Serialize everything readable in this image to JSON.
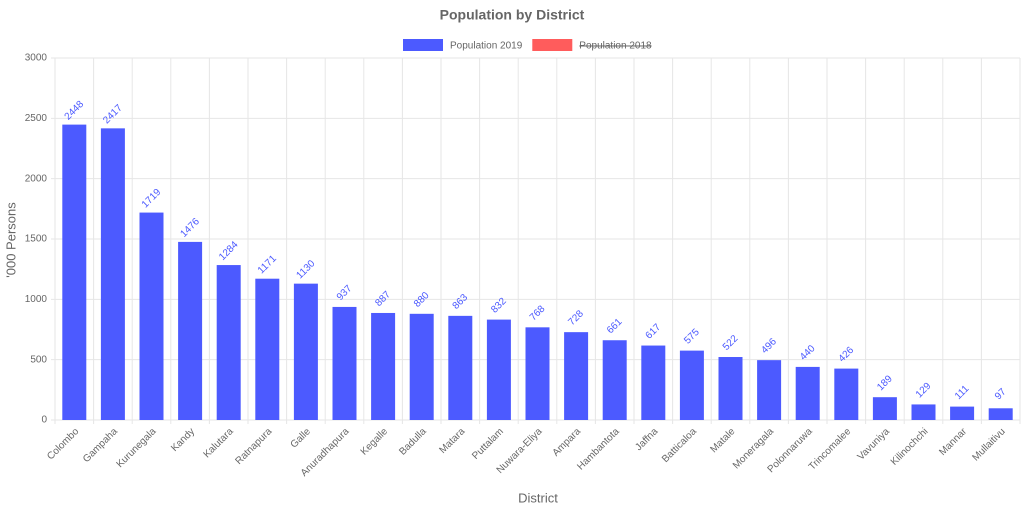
{
  "chart_data": {
    "type": "bar",
    "title": "Population by District",
    "x_label": "District",
    "y_label": "'000 Persons",
    "categories": [
      "Colombo",
      "Gampaha",
      "Kurunegala",
      "Kandy",
      "Kalutara",
      "Ratnapura",
      "Galle",
      "Anuradhapura",
      "Kegalle",
      "Badulla",
      "Matara",
      "Puttalam",
      "Nuwara-Eliya",
      "Ampara",
      "Hambantota",
      "Jaffna",
      "Batticaloa",
      "Matale",
      "Moneragala",
      "Polonnaruwa",
      "Trincomalee",
      "Vavuniya",
      "Kilinochchi",
      "Mannar",
      "Mullaitivu"
    ],
    "series": [
      {
        "name": "Population 2019",
        "color": "#4c5aff",
        "values": [
          2448,
          2417,
          1719,
          1476,
          1284,
          1171,
          1130,
          937,
          887,
          880,
          863,
          832,
          768,
          728,
          661,
          617,
          575,
          522,
          496,
          440,
          426,
          189,
          129,
          111,
          97
        ]
      },
      {
        "name": "Population 2018",
        "color": "#ff5c5c",
        "hidden": true,
        "values": [
          null,
          null,
          null,
          null,
          null,
          null,
          null,
          null,
          null,
          null,
          null,
          null,
          null,
          null,
          null,
          null,
          null,
          null,
          null,
          null,
          null,
          null,
          null,
          null,
          null
        ]
      }
    ],
    "ylim": [
      0,
      3000
    ],
    "yticks": [
      0,
      500,
      1000,
      1500,
      2000,
      2500,
      3000
    ],
    "grid": true,
    "data_labels": true,
    "legend": "top"
  }
}
